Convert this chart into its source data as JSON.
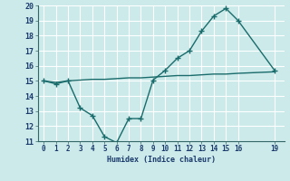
{
  "xlabel": "Humidex (Indice chaleur)",
  "bg_color": "#cceaea",
  "grid_color": "#ffffff",
  "line_color": "#1a6b6b",
  "wavy_x": [
    0,
    1,
    2,
    3,
    4,
    5,
    6,
    7,
    8,
    9,
    10,
    11,
    12,
    13,
    14,
    15,
    16,
    19
  ],
  "wavy_y": [
    15.0,
    14.8,
    15.0,
    13.2,
    12.7,
    11.3,
    10.9,
    12.5,
    12.5,
    15.05,
    15.7,
    16.5,
    17.0,
    18.3,
    19.3,
    19.8,
    19.0,
    15.7
  ],
  "flat_x": [
    0,
    1,
    2,
    3,
    4,
    5,
    6,
    7,
    8,
    9,
    10,
    11,
    12,
    13,
    14,
    15,
    16,
    19
  ],
  "flat_y": [
    15.0,
    14.9,
    15.0,
    15.05,
    15.1,
    15.1,
    15.15,
    15.2,
    15.2,
    15.25,
    15.3,
    15.35,
    15.35,
    15.4,
    15.45,
    15.45,
    15.5,
    15.6
  ],
  "ylim": [
    11,
    20
  ],
  "yticks": [
    11,
    12,
    13,
    14,
    15,
    16,
    17,
    18,
    19,
    20
  ],
  "xticks": [
    0,
    1,
    2,
    3,
    4,
    5,
    6,
    7,
    8,
    9,
    10,
    11,
    12,
    13,
    14,
    15,
    16,
    19
  ],
  "xlim": [
    -0.5,
    19.8
  ],
  "marker": "+",
  "markersize": 4,
  "linewidth": 1.0
}
